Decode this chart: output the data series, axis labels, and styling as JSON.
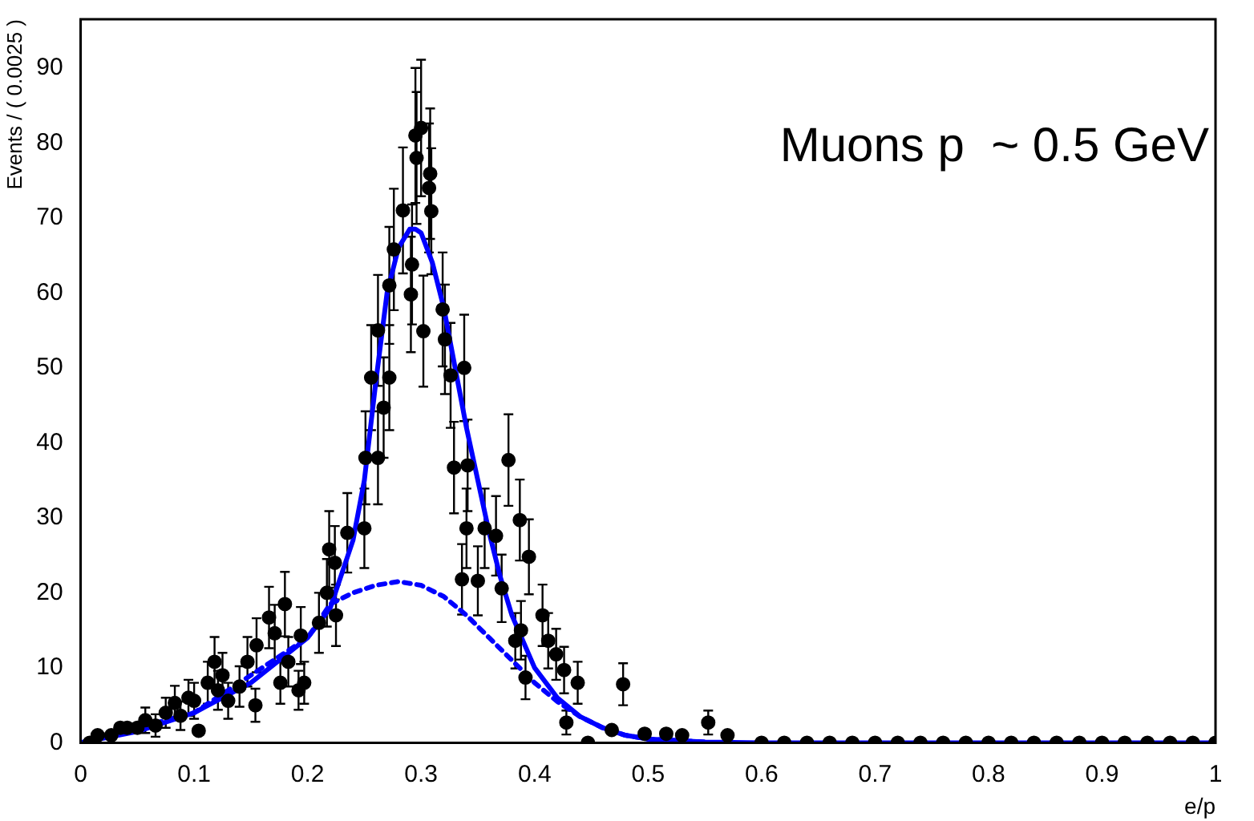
{
  "chart_data": {
    "type": "scatter",
    "xlabel": "e/p",
    "ylabel": "Events / ( 0.0025 )",
    "annotations": [
      "Muons p  ~ 0.5 GeV"
    ],
    "xlim": [
      0,
      1
    ],
    "ylim": [
      0,
      96.5
    ],
    "xticks": [
      0,
      0.1,
      0.2,
      0.3,
      0.4,
      0.5,
      0.6,
      0.7,
      0.8,
      0.9,
      1
    ],
    "yticks": [
      0,
      10,
      20,
      30,
      40,
      50,
      60,
      70,
      80,
      90
    ],
    "grid": false,
    "legend": false,
    "series": [
      {
        "color": "#000000",
        "marker": "circle",
        "x": [
          0.008,
          0.015,
          0.027,
          0.035,
          0.041,
          0.05,
          0.057,
          0.066,
          0.075,
          0.083,
          0.088,
          0.095,
          0.1,
          0.104,
          0.112,
          0.118,
          0.121,
          0.125,
          0.13,
          0.14,
          0.147,
          0.154,
          0.155,
          0.166,
          0.171,
          0.176,
          0.18,
          0.183,
          0.192,
          0.194,
          0.197,
          0.21,
          0.217,
          0.219,
          0.224,
          0.225,
          0.235,
          0.25,
          0.251,
          0.256,
          0.262,
          0.262,
          0.267,
          0.272,
          0.272,
          0.276,
          0.284,
          0.291,
          0.292,
          0.295,
          0.296,
          0.3,
          0.302,
          0.307,
          0.308,
          0.309,
          0.319,
          0.321,
          0.326,
          0.329,
          0.336,
          0.338,
          0.34,
          0.341,
          0.35,
          0.356,
          0.366,
          0.371,
          0.377,
          0.383,
          0.387,
          0.388,
          0.392,
          0.395,
          0.407,
          0.412,
          0.419,
          0.426,
          0.428,
          0.438,
          0.447,
          0.468,
          0.478,
          0.497,
          0.516,
          0.53,
          0.553,
          0.57,
          0.6,
          0.62,
          0.64,
          0.66,
          0.68,
          0.7,
          0.72,
          0.74,
          0.76,
          0.78,
          0.8,
          0.82,
          0.84,
          0.86,
          0.88,
          0.9,
          0.92,
          0.94,
          0.96,
          0.98,
          1
        ],
        "values": [
          0,
          1,
          1,
          2,
          2,
          2,
          3,
          2.3,
          4,
          5.3,
          3.6,
          6,
          5.6,
          1.6,
          8,
          10.8,
          7,
          9,
          5.6,
          7.5,
          10.8,
          5,
          13,
          16.7,
          14.6,
          8,
          18.5,
          10.8,
          7,
          14.3,
          8,
          16,
          20,
          25.8,
          24,
          17,
          28,
          28.6,
          38,
          48.7,
          55,
          38,
          44.7,
          48.7,
          61,
          65.8,
          71,
          59.8,
          63.8,
          81,
          78,
          82,
          54.9,
          74,
          75.9,
          70.9,
          57.8,
          53.8,
          49,
          36.7,
          21.8,
          50,
          28.6,
          37,
          21.6,
          28.6,
          27.6,
          20.6,
          37.7,
          13.6,
          29.7,
          15,
          8.7,
          24.8,
          17,
          13.6,
          11.8,
          9.7,
          2.7,
          8,
          0,
          1.7,
          7.8,
          1.2,
          1.2,
          1,
          2.7,
          1,
          0,
          0,
          0,
          0,
          0,
          0,
          0,
          0,
          0,
          0,
          0,
          0,
          0,
          0,
          0,
          0,
          0,
          0,
          0,
          0,
          0
        ],
        "errors": [
          null,
          null,
          null,
          null,
          null,
          null,
          1.7,
          1.5,
          2,
          2.3,
          1.9,
          2.4,
          2.4,
          null,
          2.8,
          3.3,
          2.6,
          3,
          2.4,
          2.7,
          3.3,
          2.2,
          3.6,
          4.1,
          3.8,
          2.8,
          4.3,
          3.3,
          2.6,
          3.8,
          2.8,
          4,
          4.5,
          5.1,
          4.9,
          4.1,
          5.3,
          5.3,
          6.2,
          7,
          7.4,
          6.2,
          6.7,
          7,
          7.8,
          8.1,
          8.4,
          7.7,
          8,
          9,
          8.8,
          9.1,
          7.4,
          8.6,
          8.7,
          8.4,
          7.6,
          7.3,
          7,
          6.1,
          4.7,
          7.1,
          5.3,
          6.1,
          4.6,
          5.3,
          5.3,
          4.5,
          6.1,
          3.7,
          5.4,
          3.9,
          2.9,
          5,
          4.1,
          3.7,
          3.4,
          3.1,
          1.6,
          2.8,
          null,
          null,
          2.8,
          null,
          null,
          null,
          1.6,
          null,
          null,
          null,
          null,
          null,
          null,
          null,
          null,
          null,
          null,
          null,
          null,
          null,
          null,
          null,
          null,
          null,
          null,
          null,
          null,
          null,
          null
        ]
      },
      {
        "type": "line",
        "color": "#0000ff",
        "marker": "none",
        "line_style": "solid",
        "x": [
          0,
          0.05,
          0.1,
          0.15,
          0.2,
          0.22,
          0.24,
          0.25,
          0.26,
          0.27,
          0.28,
          0.29,
          0.295,
          0.3,
          0.31,
          0.32,
          0.33,
          0.34,
          0.35,
          0.36,
          0.37,
          0.38,
          0.4,
          0.42,
          0.44,
          0.46,
          0.48,
          0.5,
          0.55,
          0.6,
          1
        ],
        "values": [
          0,
          1.5,
          4,
          8,
          14,
          18,
          27,
          35,
          48,
          60,
          66,
          68.5,
          68.5,
          68,
          64,
          58,
          50,
          42,
          35,
          28,
          22,
          17,
          10,
          6,
          3.5,
          2,
          1,
          0.5,
          0.1,
          0,
          0
        ]
      },
      {
        "type": "line",
        "color": "#0000ff",
        "marker": "none",
        "line_style": "dotted",
        "x": [
          0,
          0.1,
          0.2,
          0.22,
          0.24,
          0.26,
          0.28,
          0.3,
          0.32,
          0.34,
          0.36,
          0.38,
          0.4,
          0.42,
          0.44,
          0.46,
          0.48,
          0.5,
          0.55
        ],
        "values": [
          0,
          4,
          14,
          18.5,
          20,
          21,
          21.5,
          21,
          19.5,
          17,
          14,
          11,
          8,
          5.5,
          3.5,
          2,
          1,
          0.5,
          0.1
        ]
      }
    ]
  }
}
